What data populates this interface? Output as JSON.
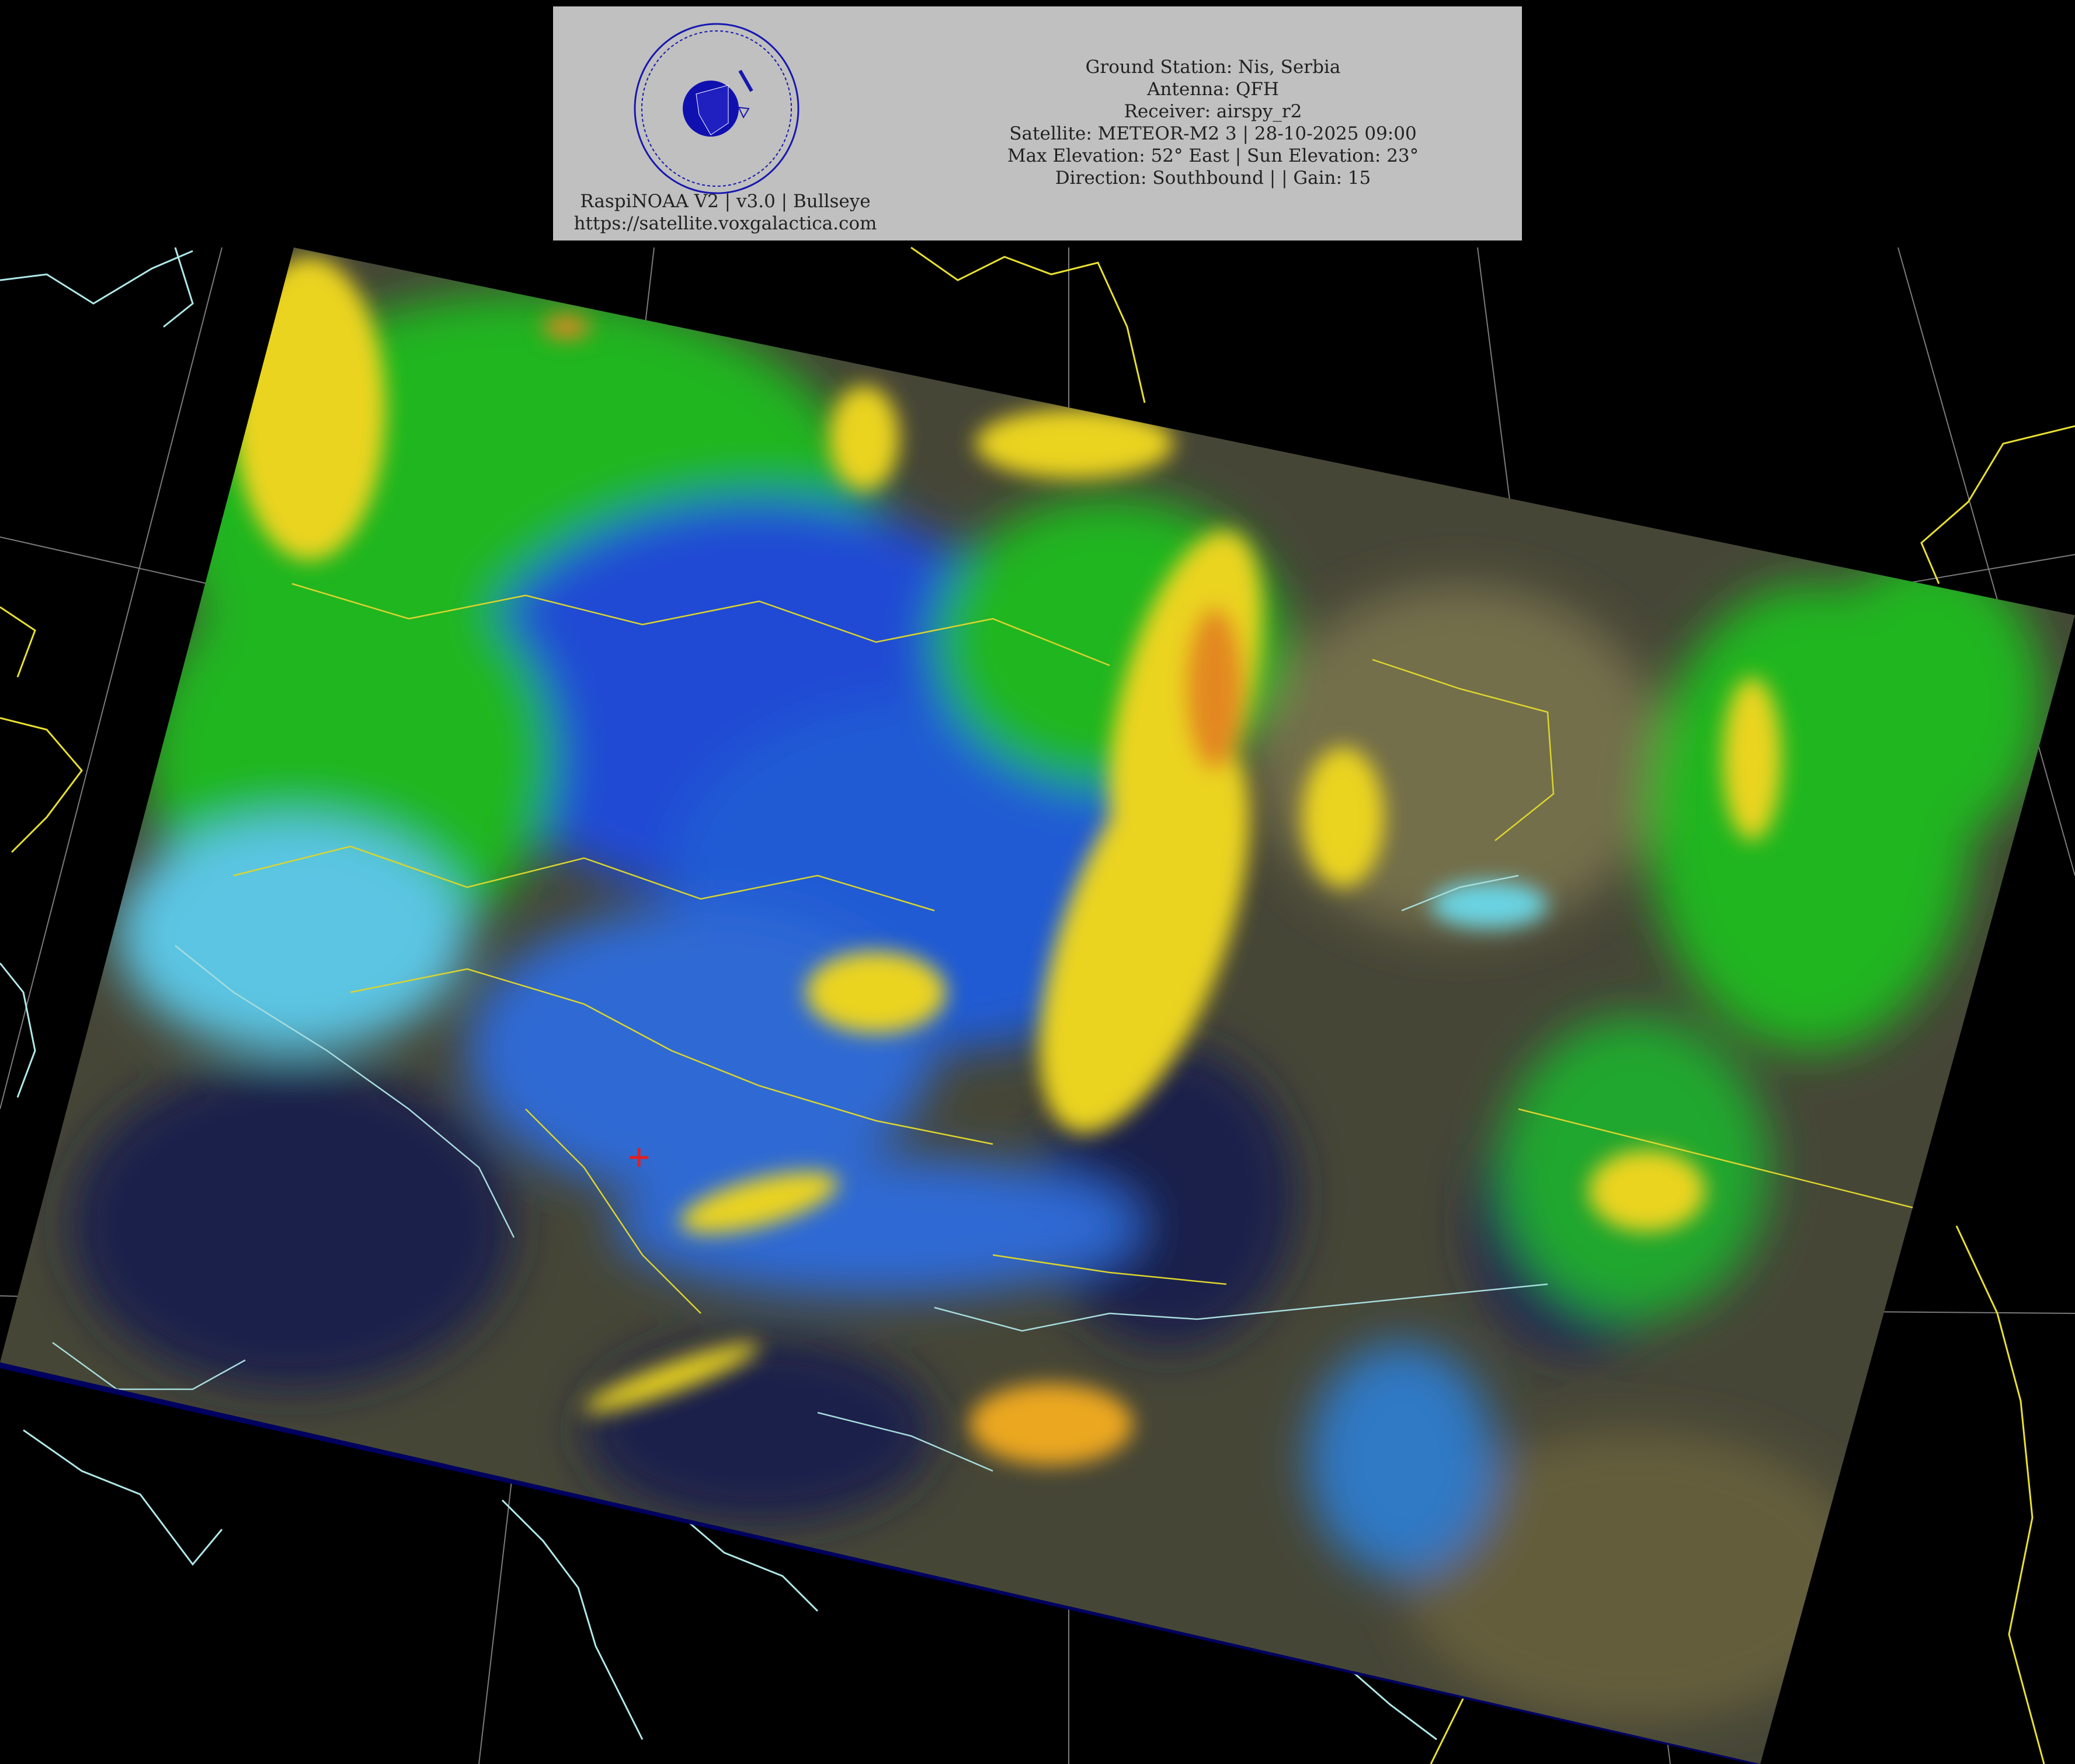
{
  "header": {
    "logo": {
      "ring_text": "Mihajlo's Satellite Receiver",
      "motto": "SAPERE AVDE",
      "site": "voxgalactica.com"
    },
    "software_line": "RaspiNOAA V2 | v3.0 | Bullseye",
    "url_line": "https://satellite.voxgalactica.com",
    "info_lines": [
      "Ground Station: Nis, Serbia",
      "Antenna: QFH",
      "Receiver: airspy_r2",
      "Satellite: METEOR-M2 3 | 28-10-2025 09:00",
      "Max Elevation: 52° East | Sun Elevation: 23°",
      "Direction: Southbound | | Gain: 15"
    ]
  },
  "map": {
    "colors": {
      "background": "#000000",
      "clear_land": "#4a4a3a",
      "sea": "#1c2050",
      "low_cloud": "#6cd8f0",
      "mid_cloud": "#2050e0",
      "high_cloud": "#20d020",
      "cold_cloud": "#f8e020",
      "coldest_cloud": "#f09020",
      "borders": "#e8e030",
      "coastlines": "#b0e8e8",
      "graticule": "#808080",
      "station_marker": "#e02020"
    },
    "station_marker_icon": "red-cross-icon"
  }
}
